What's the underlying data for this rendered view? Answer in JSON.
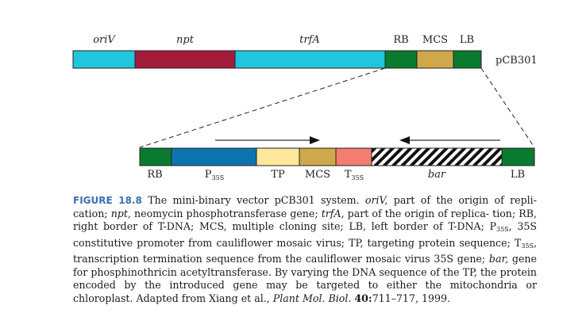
{
  "diagram": {
    "vector_name": "pCB301",
    "top_labels": {
      "oriV": "oriV",
      "npt": "npt",
      "trfA": "trfA",
      "rb": "RB",
      "mcs": "MCS",
      "lb": "LB"
    },
    "bottom_labels": {
      "rb": "RB",
      "p35s_main": "P",
      "p35s_sub": "35S",
      "tp": "TP",
      "mcs": "MCS",
      "t35s_main": "T",
      "t35s_sub": "35S",
      "bar": "bar",
      "lb": "LB"
    },
    "colors": {
      "oriV": "#1fc6dc",
      "npt": "#a41c3c",
      "trfA": "#1fc6dc",
      "border": "#0a7a2e",
      "mcs": "#cfa84c",
      "promoter": "#0e74b0",
      "tp": "#fde79a",
      "terminator": "#f47c70",
      "bar_hatch": "#111111"
    }
  },
  "caption": {
    "figure_label": "FIGURE 18.8",
    "title": "The mini-binary vector pCB301 system.",
    "t1_oriv": "oriV,",
    "t2": "part of the origin of repli- cation;",
    "t3_npt": "npt,",
    "t4": "neomycin phosphotransferase gene;",
    "t5_trfa": "trfA,",
    "t6": "part of the origin of replica- tion; RB, right border of T-DNA; MCS, multiple cloning site; LB, left border of T-DNA; P",
    "t7_sub": "35S",
    "t8": ", 35S constitutive promoter from cauliflower mosaic virus; TP, targeting protein sequence; T",
    "t9_sub": "35S",
    "t10": ", transcription termination sequence from the cauliflower mosaic virus 35S gene;",
    "t11_bar": "bar,",
    "t12": "gene for phosphinothricin acetyltransferase. By varying the DNA sequence of the TP, the protein encoded by the introduced gene may be targeted to either the mitochondria or chloroplast. Adapted from Xiang et al.,",
    "t13_journal": "Plant Mol. Biol.",
    "t14_vol": "40:",
    "t15": "711–717, 1999."
  }
}
